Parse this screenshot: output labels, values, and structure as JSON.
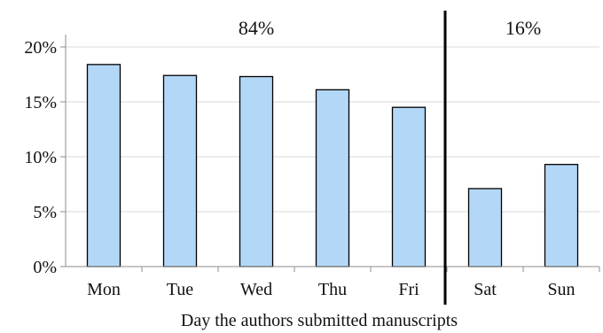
{
  "chart_data": {
    "type": "bar",
    "categories": [
      "Mon",
      "Tue",
      "Wed",
      "Thu",
      "Fri",
      "Sat",
      "Sun"
    ],
    "values": [
      18.4,
      17.4,
      17.3,
      16.1,
      14.5,
      7.1,
      9.3
    ],
    "xlabel": "Day the authors submitted manuscripts",
    "ylabel": "",
    "ylim": [
      0,
      20
    ],
    "y_ticks": [
      0,
      5,
      10,
      15,
      20
    ],
    "y_tick_labels": [
      "0%",
      "5%",
      "10%",
      "15%",
      "20%"
    ],
    "grid": true,
    "divider_between": [
      "Fri",
      "Sat"
    ],
    "annotations": [
      {
        "text": "84%",
        "group": "weekday"
      },
      {
        "text": "16%",
        "group": "weekend"
      }
    ],
    "colors": {
      "bar_fill": "#b3d7f7",
      "bar_stroke": "#000000",
      "divider": "#000000",
      "grid": "#d9d9d9"
    }
  }
}
